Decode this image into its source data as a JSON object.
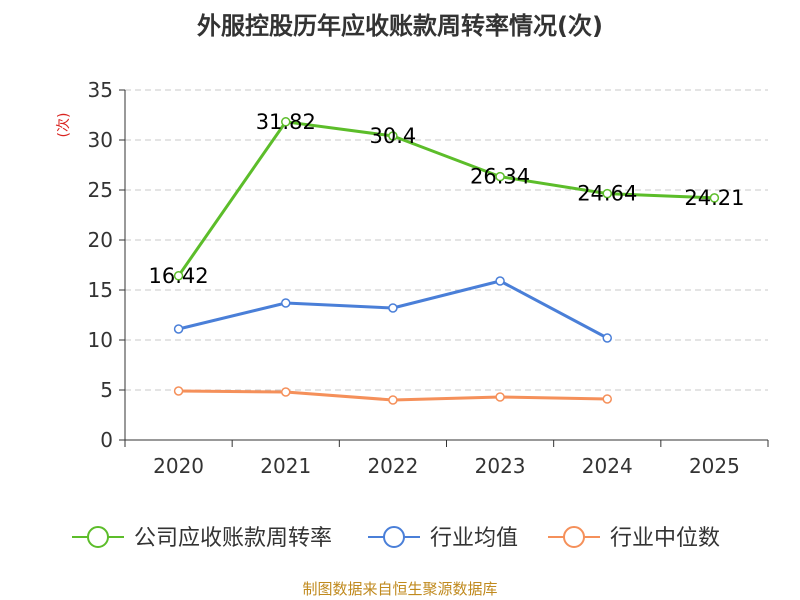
{
  "chart_data": {
    "type": "line",
    "title": "外服控股历年应收账款周转率情况(次)",
    "ylabel": "(次)",
    "xlabel": "",
    "categories": [
      "2020",
      "2021",
      "2022",
      "2023",
      "2024",
      "2025"
    ],
    "ylim": [
      0,
      35
    ],
    "yticks": [
      0,
      5,
      10,
      15,
      20,
      25,
      30,
      35
    ],
    "grid": true,
    "legend_position": "bottom",
    "series": [
      {
        "name": "公司应收账款周转率",
        "color": "#5cbd2a",
        "values": [
          16.42,
          31.82,
          30.4,
          26.34,
          24.64,
          24.21
        ],
        "labels": [
          "16.42",
          "31.82",
          "30.4",
          "26.34",
          "24.64",
          "24.21"
        ]
      },
      {
        "name": "行业均值",
        "color": "#4a7fd8",
        "values": [
          11.1,
          13.7,
          13.2,
          15.9,
          10.2,
          null
        ]
      },
      {
        "name": "行业中位数",
        "color": "#f5905a",
        "values": [
          4.9,
          4.8,
          4.0,
          4.3,
          4.1,
          null
        ]
      }
    ]
  },
  "source": "制图数据来自恒生聚源数据库"
}
